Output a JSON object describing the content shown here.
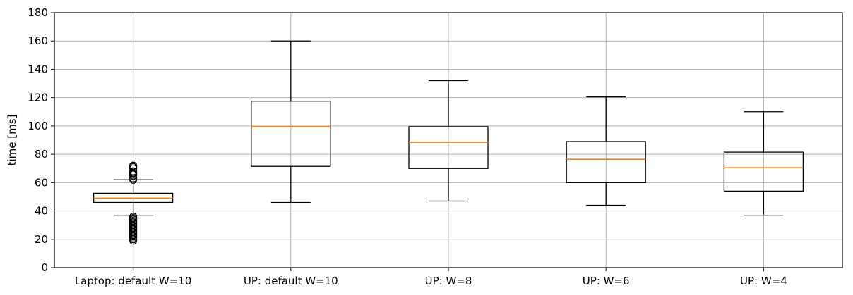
{
  "chart_data": {
    "type": "box",
    "title": "",
    "xlabel": "",
    "ylabel": "time [ms]",
    "ylim": [
      0,
      180
    ],
    "yticks": [
      0,
      20,
      40,
      60,
      80,
      100,
      120,
      140,
      160,
      180
    ],
    "grid": true,
    "categories": [
      "Laptop: default W=10",
      "UP: default W=10",
      "UP: W=8",
      "UP: W=6",
      "UP: W=4"
    ],
    "boxes": [
      {
        "category": "Laptop: default W=10",
        "whisker_low": 37,
        "q1": 46,
        "median": 49,
        "q3": 52.5,
        "whisker_high": 62,
        "outliers": [
          19,
          20,
          21,
          22,
          23,
          24,
          25,
          26,
          27,
          28,
          29,
          30,
          31,
          32,
          33,
          34,
          35,
          36,
          62,
          63,
          65,
          66,
          67,
          68,
          70,
          71,
          72
        ]
      },
      {
        "category": "UP: default W=10",
        "whisker_low": 46,
        "q1": 71.5,
        "median": 99.5,
        "q3": 117.5,
        "whisker_high": 160,
        "outliers": []
      },
      {
        "category": "UP: W=8",
        "whisker_low": 47,
        "q1": 70,
        "median": 88.5,
        "q3": 99.5,
        "whisker_high": 132,
        "outliers": []
      },
      {
        "category": "UP: W=6",
        "whisker_low": 44,
        "q1": 60,
        "median": 76.5,
        "q3": 89,
        "whisker_high": 120.5,
        "outliers": []
      },
      {
        "category": "UP: W=4",
        "whisker_low": 37,
        "q1": 54,
        "median": 70.5,
        "q3": 81.5,
        "whisker_high": 110,
        "outliers": []
      }
    ],
    "colors": {
      "box": "#000000",
      "median": "#ff7f0e",
      "grid": "#b0b0b0",
      "outlier": "#000000"
    }
  }
}
